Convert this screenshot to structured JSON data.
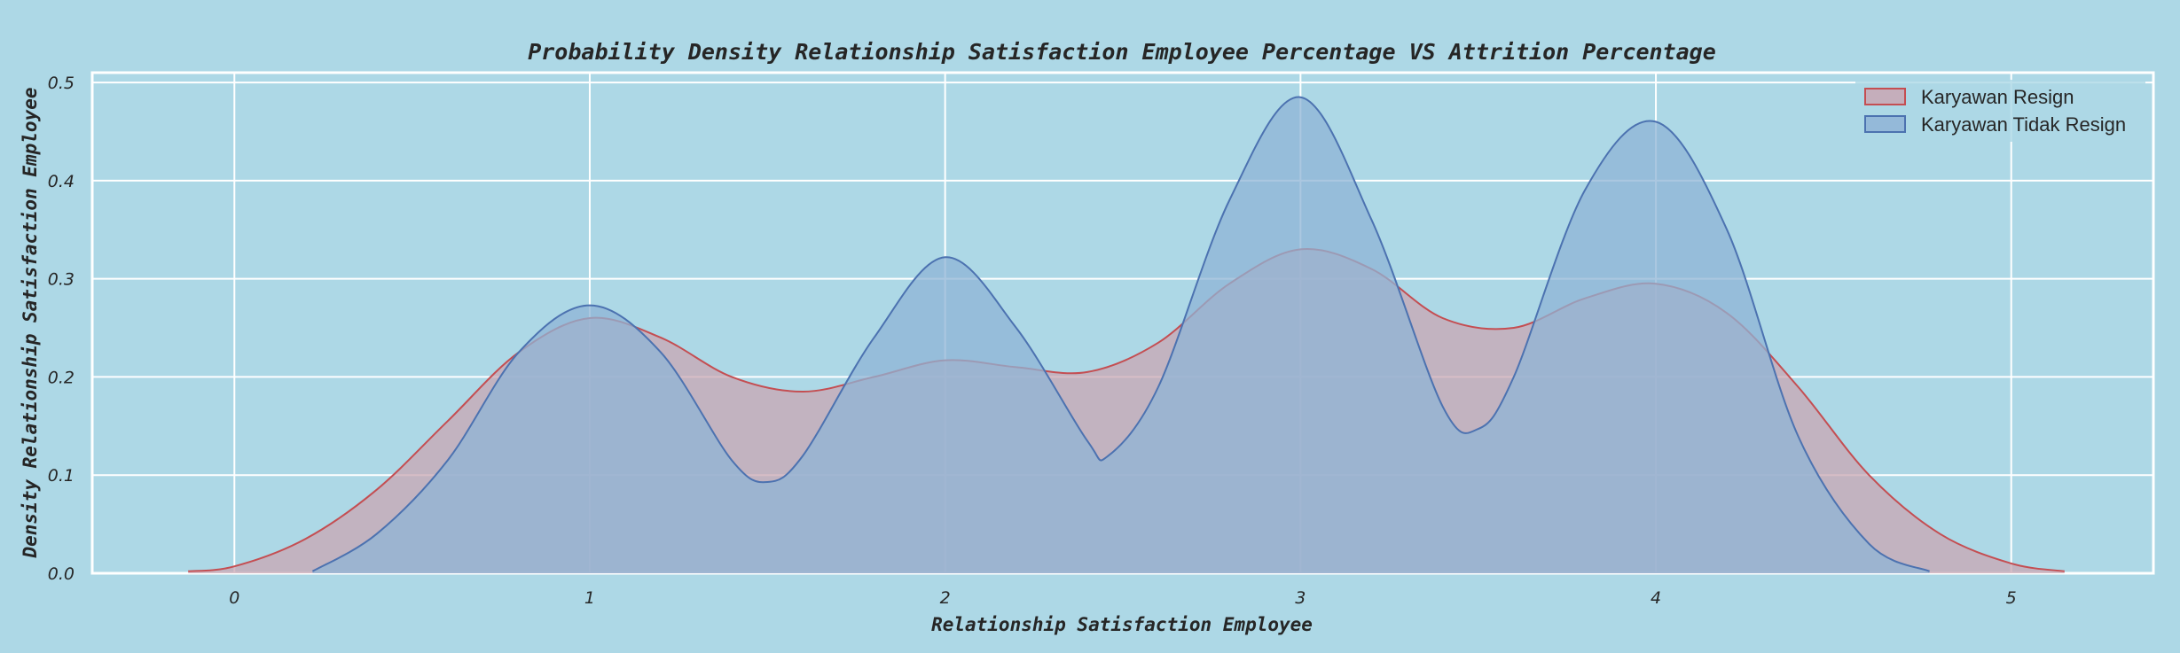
{
  "chart_data": {
    "type": "area",
    "title": "Probability Density Relationship Satisfaction Employee Percentage VS Attrition Percentage",
    "xlabel": "Relationship Satisfaction Employee",
    "ylabel": "Density Relationship Satisfaction Employee",
    "xlim": [
      -0.4,
      5.4
    ],
    "ylim": [
      0,
      0.51
    ],
    "xticks": [
      0,
      1,
      2,
      3,
      4,
      5
    ],
    "xtick_labels": [
      "0",
      "1",
      "2",
      "3",
      "4",
      "5"
    ],
    "yticks": [
      0.0,
      0.1,
      0.2,
      0.3,
      0.4,
      0.5
    ],
    "ytick_labels": [
      "0.0",
      "0.1",
      "0.2",
      "0.3",
      "0.4",
      "0.5"
    ],
    "grid": true,
    "legend_position": "top-right",
    "series": [
      {
        "name": "Karyawan Resign",
        "stroke": "#c44e52",
        "fill": "#c9a7b3",
        "x": [
          -0.13,
          0.0,
          0.2,
          0.4,
          0.6,
          0.8,
          1.0,
          1.2,
          1.4,
          1.6,
          1.8,
          2.0,
          2.2,
          2.4,
          2.6,
          2.8,
          3.0,
          3.2,
          3.4,
          3.6,
          3.8,
          4.0,
          4.2,
          4.4,
          4.6,
          4.8,
          5.0,
          5.15
        ],
        "y": [
          0.002,
          0.007,
          0.035,
          0.085,
          0.155,
          0.225,
          0.26,
          0.24,
          0.2,
          0.185,
          0.2,
          0.217,
          0.21,
          0.205,
          0.235,
          0.295,
          0.33,
          0.31,
          0.26,
          0.25,
          0.28,
          0.295,
          0.265,
          0.19,
          0.1,
          0.04,
          0.01,
          0.002
        ]
      },
      {
        "name": "Karyawan Tidak Resign",
        "stroke": "#4c72b0",
        "fill": "#8fb4d6",
        "x": [
          0.22,
          0.4,
          0.6,
          0.8,
          1.0,
          1.2,
          1.4,
          1.5,
          1.6,
          1.8,
          2.0,
          2.2,
          2.4,
          2.46,
          2.6,
          2.8,
          3.0,
          3.2,
          3.4,
          3.5,
          3.6,
          3.8,
          4.0,
          4.2,
          4.4,
          4.6,
          4.77
        ],
        "y": [
          0.002,
          0.04,
          0.115,
          0.225,
          0.273,
          0.225,
          0.115,
          0.093,
          0.12,
          0.24,
          0.322,
          0.25,
          0.135,
          0.12,
          0.19,
          0.38,
          0.485,
          0.36,
          0.17,
          0.147,
          0.2,
          0.39,
          0.46,
          0.35,
          0.14,
          0.03,
          0.002
        ]
      }
    ]
  }
}
